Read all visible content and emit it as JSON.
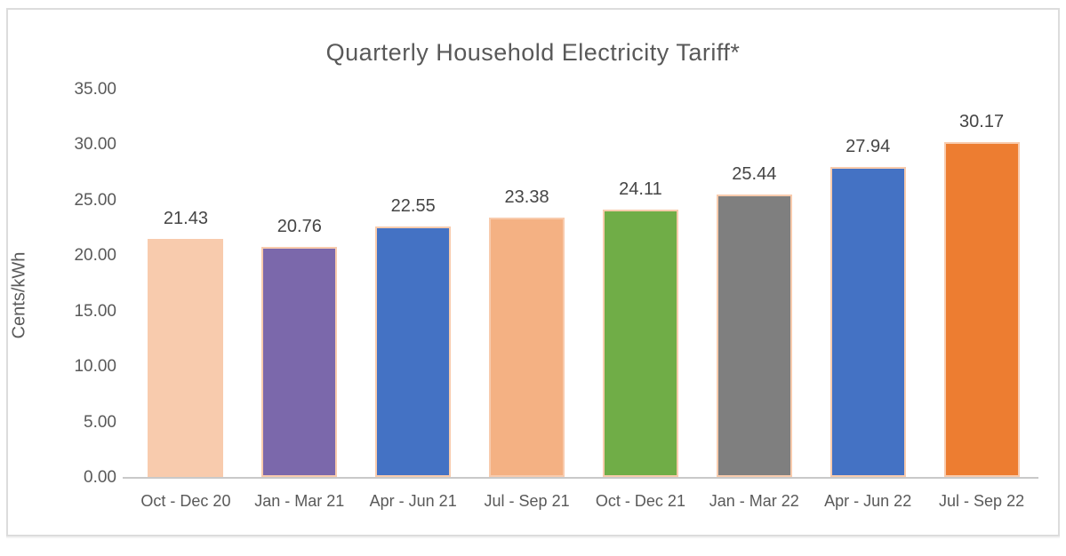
{
  "chart_data": {
    "type": "bar",
    "title": "Quarterly Household Electricity Tariff*",
    "xlabel": "",
    "ylabel": "Cents/kWh",
    "categories": [
      "Oct - Dec 20",
      "Jan - Mar 21",
      "Apr - Jun 21",
      "Jul - Sep 21",
      "Oct - Dec 21",
      "Jan - Mar 22",
      "Apr - Jun 22",
      "Jul - Sep 22"
    ],
    "values": [
      21.43,
      20.76,
      22.55,
      23.38,
      24.11,
      25.44,
      27.94,
      30.17
    ],
    "data_labels": [
      "21.43",
      "20.76",
      "22.55",
      "23.38",
      "24.11",
      "25.44",
      "27.94",
      "30.17"
    ],
    "ylim": [
      0,
      35
    ],
    "ytick_values": [
      0,
      5,
      10,
      15,
      20,
      25,
      30,
      35
    ],
    "ytick_labels": [
      "0.00",
      "5.00",
      "10.00",
      "15.00",
      "20.00",
      "25.00",
      "30.00",
      "35.00"
    ],
    "grid": false,
    "legend_position": "none",
    "bar_colors": [
      "#F8CBAD",
      "#7B68AB",
      "#4472C4",
      "#F4B183",
      "#70AD47",
      "#7F7F7F",
      "#4472C4",
      "#ED7D31"
    ],
    "bar_border_color": "#F8CBAD"
  },
  "colors": {
    "title_text": "#595959",
    "axis_text": "#595959",
    "data_label_text": "#454545",
    "axis_line": "#C9C9C9",
    "frame_border": "#DCDCDC",
    "background": "#FFFFFF"
  }
}
